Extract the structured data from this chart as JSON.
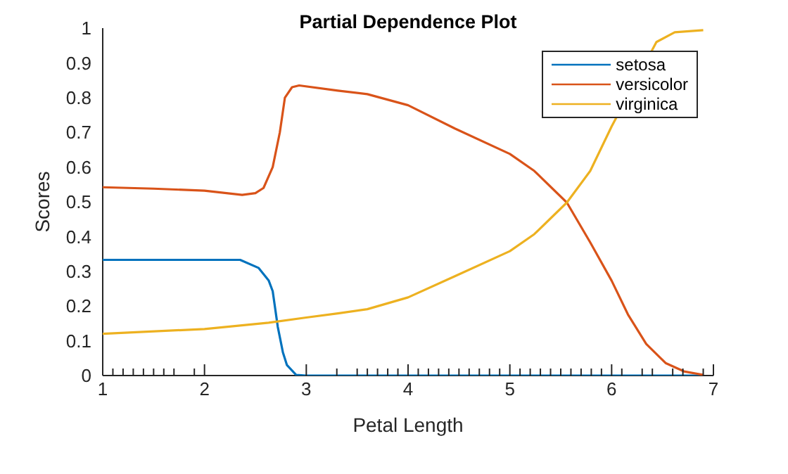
{
  "chart_data": {
    "type": "line",
    "title": "Partial Dependence Plot",
    "xlabel": "Petal Length",
    "ylabel": "Scores",
    "xlim": [
      1,
      7
    ],
    "ylim": [
      0,
      1
    ],
    "xticks": [
      1,
      {
        "value": 1.1,
        "label": null
      },
      {
        "value": 1.2,
        "label": null
      },
      {
        "value": 1.3,
        "label": null
      },
      {
        "value": 1.4,
        "label": null
      },
      {
        "value": 1.5,
        "label": null
      },
      {
        "value": 1.6,
        "label": null
      },
      {
        "value": 1.7,
        "label": null
      },
      {
        "value": 1.9,
        "label": null
      },
      2,
      3,
      {
        "value": 3.3,
        "label": null
      },
      {
        "value": 3.5,
        "label": null
      },
      {
        "value": 3.6,
        "label": null
      },
      {
        "value": 3.7,
        "label": null
      },
      {
        "value": 3.8,
        "label": null
      },
      {
        "value": 3.9,
        "label": null
      },
      4,
      {
        "value": 4.1,
        "label": null
      },
      {
        "value": 4.2,
        "label": null
      },
      {
        "value": 4.3,
        "label": null
      },
      {
        "value": 4.4,
        "label": null
      },
      {
        "value": 4.5,
        "label": null
      },
      {
        "value": 4.6,
        "label": null
      },
      {
        "value": 4.7,
        "label": null
      },
      {
        "value": 4.8,
        "label": null
      },
      {
        "value": 4.9,
        "label": null
      },
      5,
      {
        "value": 5.1,
        "label": null
      },
      {
        "value": 5.2,
        "label": null
      },
      {
        "value": 5.3,
        "label": null
      },
      {
        "value": 5.4,
        "label": null
      },
      {
        "value": 5.5,
        "label": null
      },
      {
        "value": 5.6,
        "label": null
      },
      {
        "value": 5.7,
        "label": null
      },
      {
        "value": 5.8,
        "label": null
      },
      {
        "value": 5.9,
        "label": null
      },
      6,
      {
        "value": 6.1,
        "label": null
      },
      {
        "value": 6.3,
        "label": null
      },
      {
        "value": 6.4,
        "label": null
      },
      {
        "value": 6.6,
        "label": null
      },
      {
        "value": 6.7,
        "label": null
      },
      {
        "value": 6.9,
        "label": null
      },
      7
    ],
    "yticks": [
      0,
      0.1,
      0.2,
      0.3,
      0.4,
      0.5,
      0.6,
      0.7,
      0.8,
      0.9,
      1
    ],
    "grid": false,
    "legend": "top right",
    "marker": "none",
    "line_style": "solid",
    "series": [
      {
        "name": "setosa",
        "color": "#0072bd",
        "x": [
          1,
          1.5,
          2,
          2.35,
          2.53,
          2.63,
          2.67,
          2.72,
          2.77,
          2.81,
          2.9,
          3,
          4,
          5,
          6,
          6.9
        ],
        "values": [
          0.333,
          0.333,
          0.333,
          0.333,
          0.31,
          0.274,
          0.243,
          0.14,
          0.067,
          0.03,
          0.002,
          0,
          0,
          0,
          0,
          0
        ]
      },
      {
        "name": "versicolor",
        "color": "#d95319",
        "x": [
          1,
          1.5,
          2,
          2.37,
          2.5,
          2.58,
          2.67,
          2.74,
          2.79,
          2.86,
          2.93,
          3.31,
          3.6,
          4,
          4.46,
          5,
          5.24,
          5.56,
          5.79,
          6,
          6.16,
          6.34,
          6.53,
          6.71,
          6.9
        ],
        "values": [
          0.542,
          0.538,
          0.532,
          0.52,
          0.525,
          0.54,
          0.6,
          0.7,
          0.8,
          0.83,
          0.835,
          0.82,
          0.81,
          0.778,
          0.711,
          0.638,
          0.589,
          0.498,
          0.383,
          0.273,
          0.176,
          0.091,
          0.036,
          0.012,
          0.002
        ]
      },
      {
        "name": "virginica",
        "color": "#edb120",
        "x": [
          1,
          2,
          2.63,
          3,
          3.31,
          3.6,
          4,
          4.46,
          5,
          5.24,
          5.56,
          5.79,
          6,
          6.44,
          6.62,
          6.9
        ],
        "values": [
          0.12,
          0.134,
          0.152,
          0.167,
          0.179,
          0.191,
          0.225,
          0.286,
          0.358,
          0.407,
          0.498,
          0.589,
          0.717,
          0.96,
          0.988,
          0.994
        ]
      }
    ]
  }
}
